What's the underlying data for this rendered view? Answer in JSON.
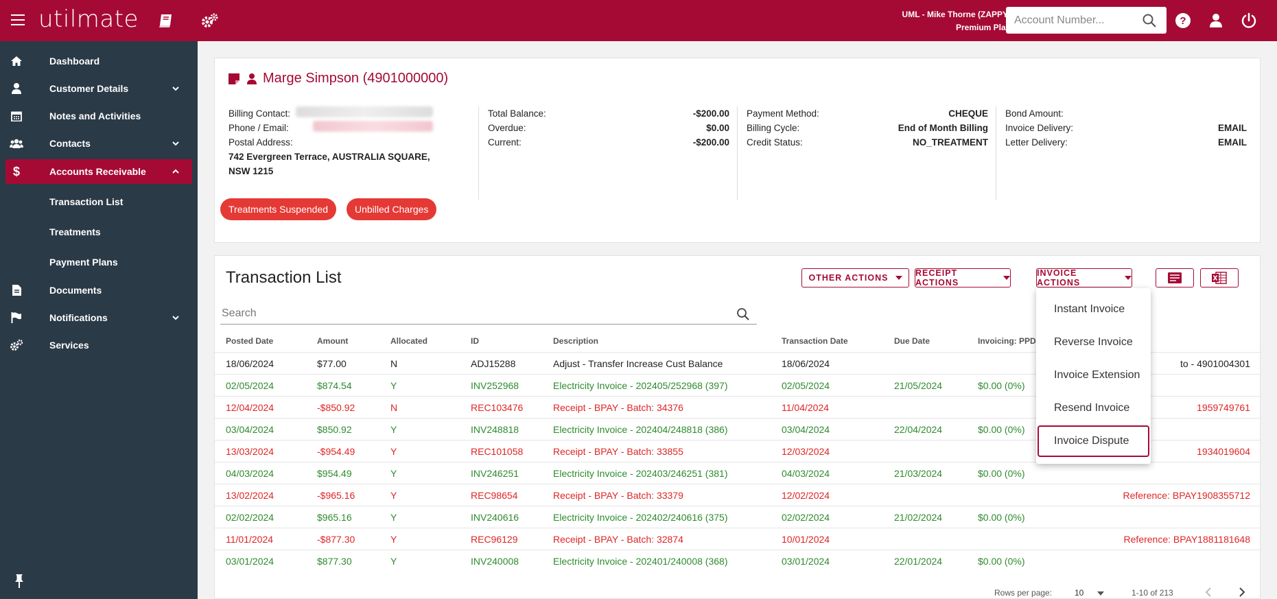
{
  "header": {
    "logo": "utilmate",
    "user_line1": "UML - Mike Thorne (ZAPPY)",
    "user_line2": "Premium Plan",
    "account_search_placeholder": "Account Number..."
  },
  "sidebar": {
    "items": [
      {
        "label": "Dashboard",
        "icon": "home-icon"
      },
      {
        "label": "Customer Details",
        "icon": "user-icon"
      },
      {
        "label": "Notes and Activities",
        "icon": "calendar-icon"
      },
      {
        "label": "Contacts",
        "icon": "group-icon"
      },
      {
        "label": "Accounts Receivable",
        "icon": "dollar-icon"
      },
      {
        "label": "Documents",
        "icon": "file-icon"
      },
      {
        "label": "Notifications",
        "icon": "flag-icon"
      },
      {
        "label": "Services",
        "icon": "cogs-icon"
      }
    ],
    "sub_items": [
      "Transaction List",
      "Treatments",
      "Payment Plans"
    ]
  },
  "customer": {
    "title": "Marge Simpson (4901000000)",
    "billing_contact_label": "Billing Contact:",
    "phone_email_label": "Phone / Email:",
    "postal_address_label": "Postal Address:",
    "postal_address": "742 Evergreen Terrace, AUSTRALIA SQUARE, NSW 1215",
    "total_balance_label": "Total Balance:",
    "total_balance": "-$200.00",
    "overdue_label": "Overdue:",
    "overdue": "$0.00",
    "current_label": "Current:",
    "current": "-$200.00",
    "payment_method_label": "Payment Method:",
    "payment_method": "CHEQUE",
    "billing_cycle_label": "Billing Cycle:",
    "billing_cycle": "End of Month Billing",
    "credit_status_label": "Credit Status:",
    "credit_status": "NO_TREATMENT",
    "bond_amount_label": "Bond Amount:",
    "invoice_delivery_label": "Invoice Delivery:",
    "invoice_delivery": "EMAIL",
    "letter_delivery_label": "Letter Delivery:",
    "letter_delivery": "EMAIL",
    "badges": [
      "Treatments Suspended",
      "Unbilled Charges"
    ]
  },
  "transactions": {
    "title": "Transaction List",
    "actions": [
      "OTHER ACTIONS",
      "RECEIPT ACTIONS",
      "INVOICE ACTIONS"
    ],
    "search_placeholder": "Search",
    "columns": [
      "Posted Date",
      "Amount",
      "Allocated",
      "ID",
      "Description",
      "Transaction Date",
      "Due Date",
      "Invoicing: PPD"
    ],
    "rows": [
      {
        "posted": "18/06/2024",
        "amount": "$77.00",
        "allocated": "N",
        "id": "ADJ15288",
        "desc": "Adjust - Transfer Increase Cust Balance",
        "tdate": "18/06/2024",
        "due": "",
        "ppd": "",
        "ref": "to - 4901004301",
        "kind": "dark"
      },
      {
        "posted": "02/05/2024",
        "amount": "$874.54",
        "allocated": "Y",
        "id": "INV252968",
        "desc": "Electricity Invoice - 202405/252968 (397)",
        "tdate": "02/05/2024",
        "due": "21/05/2024",
        "ppd": "$0.00 (0%)",
        "ref": "",
        "kind": "green"
      },
      {
        "posted": "12/04/2024",
        "amount": "-$850.92",
        "allocated": "N",
        "id": "REC103476",
        "desc": "Receipt - BPAY - Batch: 34376",
        "tdate": "11/04/2024",
        "due": "",
        "ppd": "",
        "ref": "1959749761",
        "kind": "red"
      },
      {
        "posted": "03/04/2024",
        "amount": "$850.92",
        "allocated": "Y",
        "id": "INV248818",
        "desc": "Electricity Invoice - 202404/248818 (386)",
        "tdate": "03/04/2024",
        "due": "22/04/2024",
        "ppd": "$0.00 (0%)",
        "ref": "",
        "kind": "green"
      },
      {
        "posted": "13/03/2024",
        "amount": "-$954.49",
        "allocated": "Y",
        "id": "REC101058",
        "desc": "Receipt - BPAY - Batch: 33855",
        "tdate": "12/03/2024",
        "due": "",
        "ppd": "",
        "ref": "1934019604",
        "kind": "red"
      },
      {
        "posted": "04/03/2024",
        "amount": "$954.49",
        "allocated": "Y",
        "id": "INV246251",
        "desc": "Electricity Invoice - 202403/246251 (381)",
        "tdate": "04/03/2024",
        "due": "21/03/2024",
        "ppd": "$0.00 (0%)",
        "ref": "",
        "kind": "green"
      },
      {
        "posted": "13/02/2024",
        "amount": "-$965.16",
        "allocated": "Y",
        "id": "REC98654",
        "desc": "Receipt - BPAY - Batch: 33379",
        "tdate": "12/02/2024",
        "due": "",
        "ppd": "",
        "ref": "Reference: BPAY1908355712",
        "kind": "red"
      },
      {
        "posted": "02/02/2024",
        "amount": "$965.16",
        "allocated": "Y",
        "id": "INV240616",
        "desc": "Electricity Invoice - 202402/240616 (375)",
        "tdate": "02/02/2024",
        "due": "21/02/2024",
        "ppd": "$0.00 (0%)",
        "ref": "",
        "kind": "green"
      },
      {
        "posted": "11/01/2024",
        "amount": "-$877.30",
        "allocated": "Y",
        "id": "REC96129",
        "desc": "Receipt - BPAY - Batch: 32874",
        "tdate": "10/01/2024",
        "due": "",
        "ppd": "",
        "ref": "Reference: BPAY1881181648",
        "kind": "red"
      },
      {
        "posted": "03/01/2024",
        "amount": "$877.30",
        "allocated": "Y",
        "id": "INV240008",
        "desc": "Electricity Invoice - 202401/240008 (368)",
        "tdate": "03/01/2024",
        "due": "22/01/2024",
        "ppd": "$0.00 (0%)",
        "ref": "",
        "kind": "green"
      }
    ],
    "rows_per_page_label": "Rows per page:",
    "rows_per_page": "10",
    "page_range": "1-10 of 213"
  },
  "invoice_menu": {
    "items": [
      "Instant Invoice",
      "Reverse Invoice",
      "Invoice Extension",
      "Resend Invoice",
      "Invoice Dispute"
    ],
    "highlighted": "Invoice Dispute"
  },
  "colors": {
    "brand": "#a50a35",
    "sidebar": "#2b3a47",
    "credit": "#2e8b2e",
    "debit": "#e02424",
    "badge": "#e53935"
  }
}
